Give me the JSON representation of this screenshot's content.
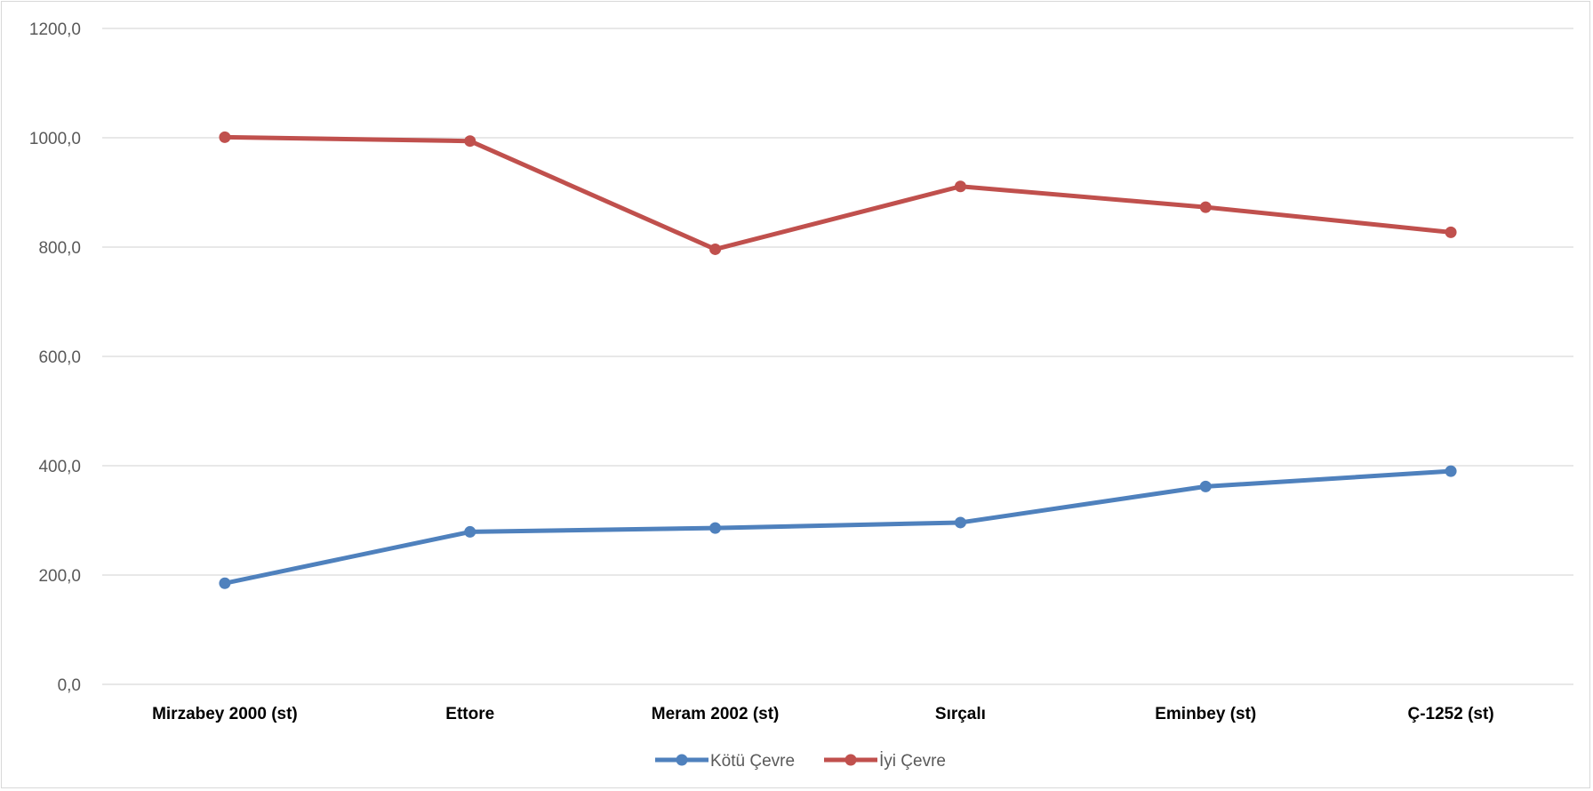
{
  "chart_data": {
    "type": "line",
    "title": "",
    "xlabel": "",
    "ylabel": "",
    "categories": [
      "Mirzabey 2000 (st)",
      "Ettore",
      "Meram 2002 (st)",
      "Sırçalı",
      "Eminbey (st)",
      "Ç-1252 (st)"
    ],
    "series": [
      {
        "name": "Kötü Çevre",
        "color": "#4f81bd",
        "values": [
          185,
          279,
          286,
          296,
          362,
          390
        ]
      },
      {
        "name": "İyi Çevre",
        "color": "#c0504d",
        "values": [
          1001,
          994,
          796,
          911,
          873,
          827
        ]
      }
    ],
    "ylim": [
      0,
      1200
    ],
    "yticks": [
      "0,0",
      "200,0",
      "400,0",
      "600,0",
      "800,0",
      "1000,0",
      "1200,0"
    ],
    "grid": true,
    "legend_position": "bottom",
    "gridline_color": "#d9d9d9"
  }
}
